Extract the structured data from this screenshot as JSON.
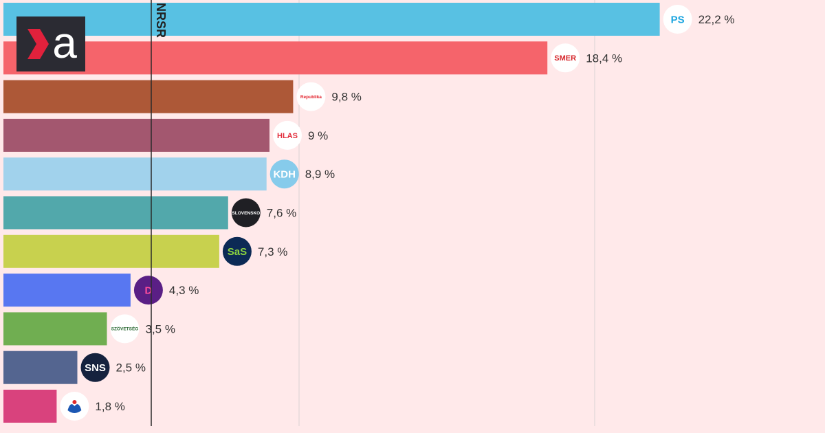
{
  "brand": {
    "logo_letter": "a",
    "colors": {
      "bg": "#2b2b33",
      "chevron": "#e1213c",
      "letter": "#ffffff"
    }
  },
  "chart_data": {
    "type": "bar",
    "orientation": "horizontal",
    "threshold": {
      "label": "NRSR",
      "value": 5
    },
    "xlim": [
      0,
      25
    ],
    "grid": true,
    "categories": [
      "PS",
      "SMER",
      "Republika",
      "HLAS",
      "KDH",
      "Hnutie Slovensko",
      "SaS",
      "Demokrati",
      "Szövetség",
      "SNS",
      "Modrá koalícia"
    ],
    "values": [
      22.2,
      18.4,
      9.8,
      9.0,
      8.9,
      7.6,
      7.3,
      4.3,
      3.5,
      2.5,
      1.8
    ],
    "value_labels": [
      "22,2 %",
      "18,4 %",
      "9,8 %",
      "9 %",
      "8,9 %",
      "7,6 %",
      "7,3 %",
      "4,3 %",
      "3,5 %",
      "2,5 %",
      "1,8 %"
    ],
    "colors": [
      "#58c1e3",
      "#f5646b",
      "#ad5837",
      "#a3576f",
      "#a1d2ec",
      "#52a8ab",
      "#c8d14e",
      "#5877f1",
      "#70ae51",
      "#546590",
      "#d9427d"
    ],
    "badges": [
      {
        "text": "PS",
        "bg": "#ffffff",
        "fg": "#1da6e0",
        "icon": "ps-logo-icon"
      },
      {
        "text": "SMER",
        "bg": "#ffffff",
        "fg": "#d6262b",
        "icon": "smer-rose-icon"
      },
      {
        "text": "Republika",
        "bg": "#ffffff",
        "fg": "#e3212b",
        "icon": "republika-logo-icon"
      },
      {
        "text": "HLAS",
        "bg": "#ffffff",
        "fg": "#e22d3c",
        "icon": "hlas-bubble-icon"
      },
      {
        "text": "KDH",
        "bg": "#86cbeb",
        "fg": "#ffffff",
        "icon": "kdh-logo-icon"
      },
      {
        "text": "SLOVENSKO",
        "bg": "#1f1f24",
        "fg": "#ffffff",
        "icon": "hnutie-slovensko-logo-icon"
      },
      {
        "text": "SaS",
        "bg": "#0c2a55",
        "fg": "#8bd240",
        "icon": "sas-logo-icon"
      },
      {
        "text": "D",
        "bg": "#5a1f85",
        "fg": "#ff4d9c",
        "icon": "demokrati-logo-icon"
      },
      {
        "text": "SZÖVETSÉG",
        "bg": "#ffffff",
        "fg": "#2c6a34",
        "icon": "szovetseg-logo-icon"
      },
      {
        "text": "SNS",
        "bg": "#15223e",
        "fg": "#ffffff",
        "icon": "sns-logo-icon"
      },
      {
        "text": "",
        "bg": "#ffffff",
        "fg": "#1b57b3",
        "icon": "hands-logo-icon"
      }
    ]
  }
}
